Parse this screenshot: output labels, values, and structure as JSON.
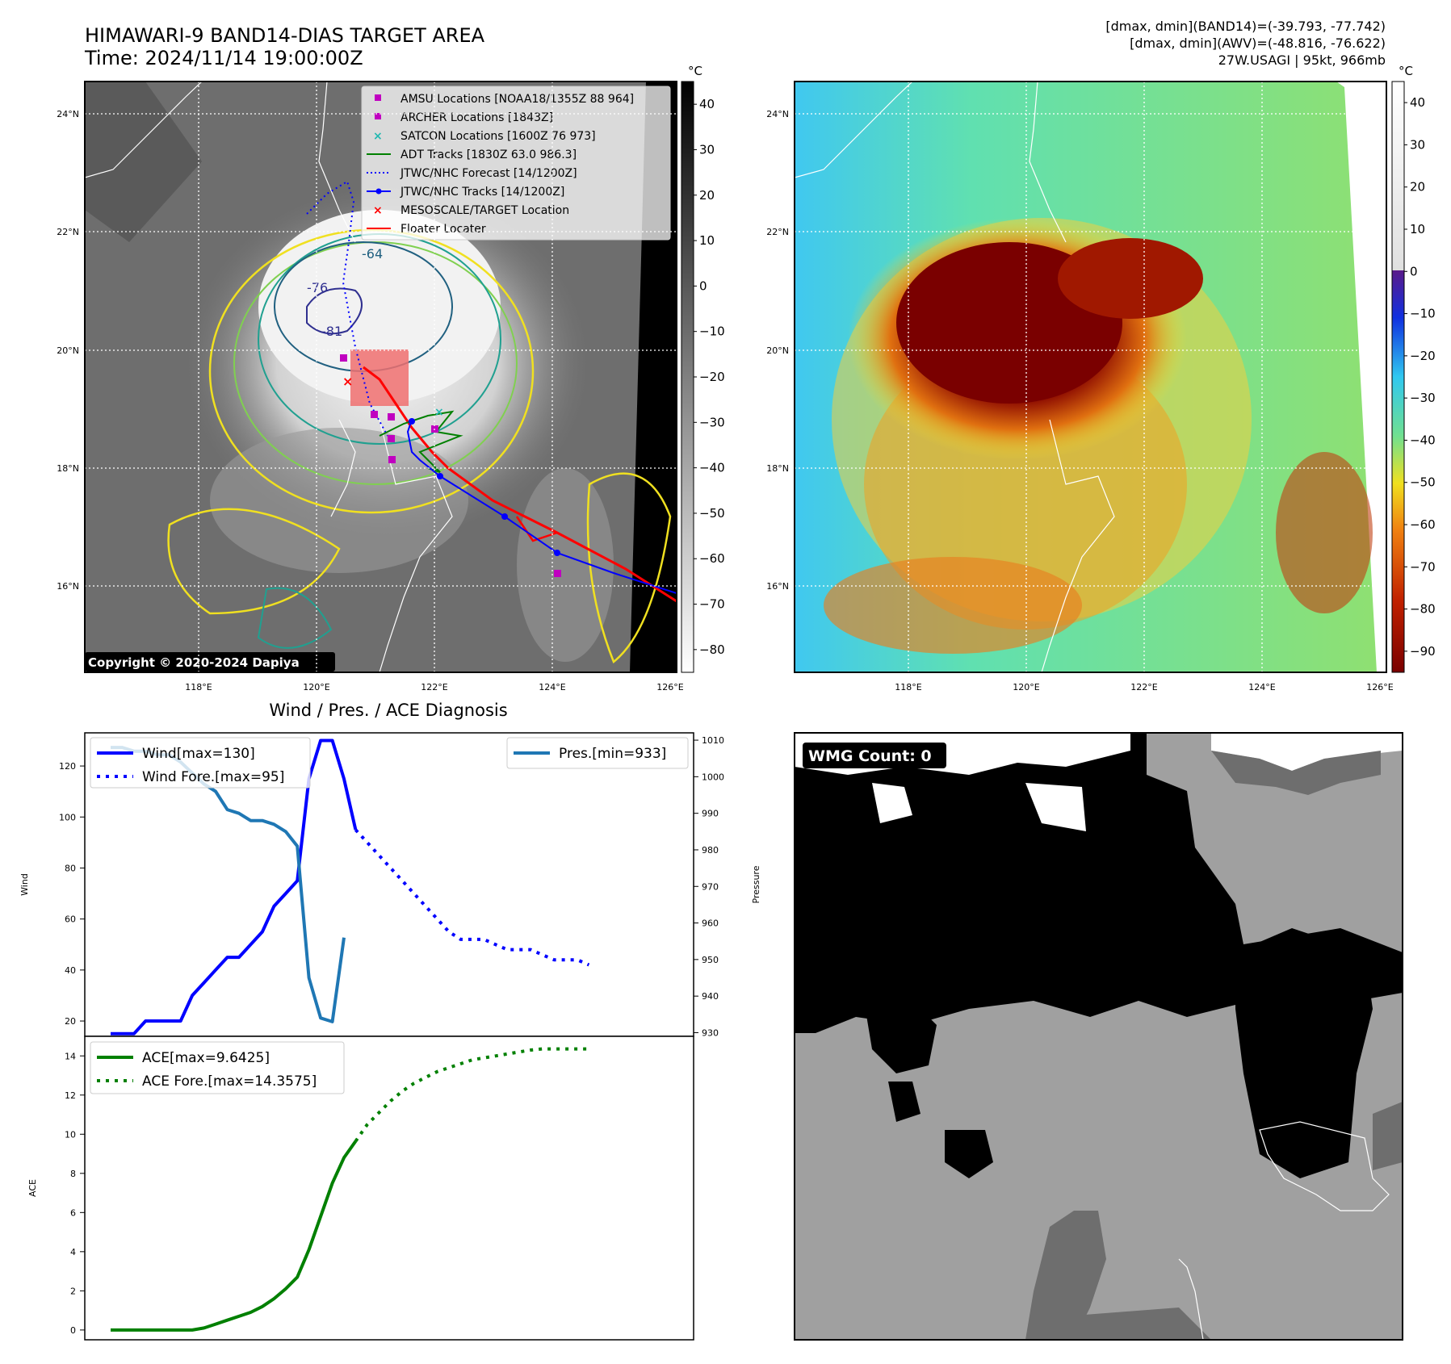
{
  "header": {
    "title": "HIMAWARI-9 BAND14-DIAS TARGET AREA",
    "time": "Time: 2024/11/14 19:00:00Z",
    "info_lines": [
      "[dmax, dmin](BAND14)=(-39.793, -77.742)",
      "[dmax, dmin](AWV)=(-48.816, -76.622)",
      "27W.USAGI | 95kt, 966mb"
    ]
  },
  "colors": {
    "wind": "#0000ff",
    "pressure": "#1f77b4",
    "ace": "#008000",
    "amsu": "#c000c0",
    "archer": "#c000c0",
    "satcon": "#20b8b0",
    "adt": "#008000",
    "jtwc": "#0000ff",
    "target": "#ff0000",
    "floater": "#ff0000"
  },
  "map": {
    "lat_ticks": [
      "24°N",
      "22°N",
      "20°N",
      "18°N",
      "16°N"
    ],
    "lon_ticks": [
      "118°E",
      "120°E",
      "122°E",
      "124°E",
      "126°E"
    ],
    "copyright": "Copyright © 2020-2024 Dapiya",
    "contour_labels": [
      "-64",
      "-76",
      "-81"
    ],
    "legend": [
      {
        "label": "AMSU Locations [NOAA18/1355Z 88 964]",
        "marker": "square",
        "color": "#c000c0"
      },
      {
        "label": "ARCHER Locations [1843Z]",
        "marker": "square",
        "color": "#c000c0"
      },
      {
        "label": "SATCON Locations [1600Z 76 973]",
        "marker": "x",
        "color": "#20b8b0"
      },
      {
        "label": "ADT Tracks [1830Z 63.0 986.3]",
        "marker": "line",
        "color": "#008000"
      },
      {
        "label": "JTWC/NHC Forecast [14/1200Z]",
        "marker": "dotted",
        "color": "#0000ff"
      },
      {
        "label": "JTWC/NHC Tracks [14/1200Z]",
        "marker": "line-dot",
        "color": "#0000ff"
      },
      {
        "label": "MESOSCALE/TARGET Location",
        "marker": "x",
        "color": "#ff0000"
      },
      {
        "label": "Floater Locater",
        "marker": "line",
        "color": "#ff0000"
      }
    ],
    "ir_colorbar": {
      "unit": "°C",
      "ticks": [
        "40",
        "30",
        "20",
        "10",
        "0",
        "−10",
        "−20",
        "−30",
        "−40",
        "−50",
        "−60",
        "−70",
        "−80"
      ]
    },
    "awv_colorbar": {
      "unit": "°C",
      "ticks": [
        "40",
        "30",
        "20",
        "10",
        "0",
        "−10",
        "−20",
        "−30",
        "−40",
        "−50",
        "−60",
        "−70",
        "−80",
        "−90"
      ]
    }
  },
  "diag": {
    "title": "Wind / Pres. / ACE Diagnosis",
    "wind_ylabel": "Wind",
    "pres_ylabel": "Pressure",
    "ace_ylabel": "ACE",
    "wind_legend": [
      "Wind[max=130]",
      "Wind Fore.[max=95]"
    ],
    "pres_legend": [
      "Pres.[min=933]"
    ],
    "ace_legend": [
      "ACE[max=9.6425]",
      "ACE Fore.[max=14.3575]"
    ],
    "wmg_label": "WMG Count: 0"
  },
  "chart_data": [
    {
      "type": "line",
      "name": "Wind",
      "ylabel": "Wind",
      "ylim": [
        14,
        133
      ],
      "yticks": [
        20,
        40,
        60,
        80,
        100,
        120
      ],
      "series": [
        {
          "name": "Wind[max=130]",
          "style": "solid",
          "values": [
            15,
            15,
            15,
            20,
            20,
            20,
            20,
            30,
            35,
            40,
            45,
            45,
            50,
            55,
            65,
            70,
            75,
            115,
            130,
            130,
            115,
            95
          ]
        },
        {
          "name": "Wind Fore.[max=95]",
          "style": "dotted",
          "offset": 21,
          "values": [
            95,
            90,
            85,
            80,
            75,
            70,
            65,
            60,
            55,
            52,
            52,
            52,
            50,
            48,
            48,
            48,
            46,
            44,
            44,
            44,
            42
          ]
        }
      ]
    },
    {
      "type": "line",
      "name": "Pressure",
      "ylabel": "Pressure",
      "ylim": [
        929,
        1012
      ],
      "yticks": [
        930,
        940,
        950,
        960,
        970,
        980,
        990,
        1000,
        1010
      ],
      "series": [
        {
          "name": "Pres.[min=933]",
          "style": "solid",
          "values": [
            1008,
            1008,
            1007,
            1007,
            1006,
            1006,
            1004,
            1001,
            998,
            996,
            991,
            990,
            988,
            988,
            987,
            985,
            981,
            945,
            934,
            933,
            956
          ]
        }
      ]
    },
    {
      "type": "line",
      "name": "ACE",
      "ylabel": "ACE",
      "ylim": [
        -0.5,
        15
      ],
      "yticks": [
        0,
        2,
        4,
        6,
        8,
        10,
        12,
        14
      ],
      "series": [
        {
          "name": "ACE[max=9.6425]",
          "style": "solid",
          "values": [
            0,
            0,
            0,
            0,
            0,
            0,
            0,
            0,
            0.1,
            0.3,
            0.5,
            0.7,
            0.9,
            1.2,
            1.6,
            2.1,
            2.7,
            4.1,
            5.8,
            7.5,
            8.8,
            9.6425
          ]
        },
        {
          "name": "ACE Fore.[max=14.3575]",
          "style": "dotted",
          "offset": 21,
          "values": [
            9.6425,
            10.5,
            11.1,
            11.7,
            12.2,
            12.6,
            12.9,
            13.2,
            13.4,
            13.6,
            13.8,
            13.9,
            14.0,
            14.1,
            14.2,
            14.3,
            14.3575,
            14.3575,
            14.3575,
            14.3575,
            14.3575
          ]
        }
      ]
    }
  ]
}
